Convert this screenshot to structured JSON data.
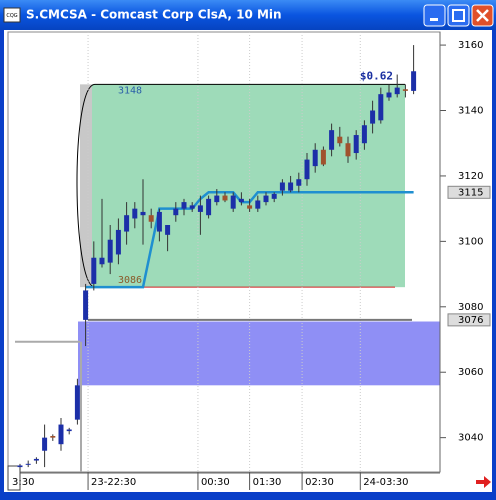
{
  "window": {
    "title": "S.CMCSA - Comcast Corp ClsA, 10 Min",
    "icon": "CQG"
  },
  "chart_data": {
    "type": "candlestick",
    "open": [
      3031,
      3032,
      3033,
      3036,
      3040.5,
      3038,
      3042,
      3045.5,
      3076,
      3087,
      3093,
      3093.5,
      3096,
      3103,
      3107,
      3108,
      3108,
      3103,
      3102,
      3108,
      3110,
      3110,
      3109,
      3108,
      3112,
      3114,
      3110,
      3112,
      3111,
      3110,
      3112,
      3113,
      3115.5,
      3115.5,
      3117,
      3119,
      3123,
      3128,
      3128,
      3132,
      3130,
      3127,
      3130,
      3136,
      3137,
      3144,
      3145,
      3146.5,
      3146
    ],
    "high": [
      3032,
      3033,
      3034,
      3044,
      3041,
      3046,
      3043,
      3058,
      3087,
      3100,
      3113,
      3105,
      3107,
      3112,
      3112,
      3119,
      3110,
      3110,
      3105,
      3112,
      3113,
      3112,
      3114,
      3114,
      3116,
      3115,
      3115,
      3115,
      3113,
      3114,
      3115,
      3115,
      3119,
      3120,
      3121,
      3127,
      3130,
      3129,
      3136,
      3135,
      3132,
      3134,
      3137,
      3143,
      3147,
      3148,
      3151,
      3148,
      3160
    ],
    "low": [
      3030,
      3031,
      3032,
      3031,
      3039,
      3036,
      3041,
      3044,
      3068,
      3085,
      3092,
      3090,
      3093,
      3099,
      3104,
      3099,
      3104,
      3100,
      3097,
      3106,
      3108,
      3109,
      3102,
      3107,
      3111,
      3112,
      3109,
      3111,
      3109,
      3109,
      3111,
      3112,
      3114,
      3115,
      3115,
      3117,
      3121,
      3123,
      3126,
      3129,
      3124,
      3125,
      3128,
      3133,
      3136,
      3143,
      3144,
      3144,
      3145
    ],
    "close": [
      3031.5,
      3032,
      3033.5,
      3040,
      3040,
      3044,
      3042.5,
      3056,
      3085,
      3095,
      3095,
      3100.5,
      3103.5,
      3108,
      3110,
      3109,
      3106,
      3109,
      3105,
      3110,
      3112,
      3111,
      3111,
      3113,
      3114,
      3112.5,
      3114,
      3113,
      3110,
      3112.5,
      3114,
      3114.5,
      3118,
      3118,
      3119,
      3125,
      3128,
      3123.5,
      3134,
      3130,
      3126,
      3132.5,
      3135.5,
      3140,
      3145,
      3145.5,
      3147,
      3146,
      3152
    ],
    "up_color": "#1c2fa8",
    "down_color": "#a0522d",
    "series": [
      {
        "color": "#1f8fd0",
        "values": [
          null,
          null,
          null,
          null,
          null,
          null,
          null,
          null,
          3086,
          3086,
          3086,
          3086,
          3086,
          3086,
          3086,
          3086,
          3098,
          3110,
          3110,
          3110,
          3110,
          3110,
          3113,
          3115,
          3115,
          3115,
          3115,
          3112,
          3112,
          3115,
          3115,
          3115,
          3115,
          3115,
          3115,
          3115,
          3115,
          3115,
          3115,
          3115,
          3115,
          3115,
          3115,
          3115,
          3115,
          3115,
          3115,
          3115,
          3115
        ]
      }
    ],
    "ylim": [
      3029.5,
      3164
    ],
    "yticks": [
      3040,
      3060,
      3080,
      3100,
      3120,
      3140,
      3160
    ],
    "xticks": [
      {
        "value": 0.6,
        "label": "3:30"
      },
      {
        "value": 8.3,
        "label": "23-22:30"
      },
      {
        "value": 21.7,
        "label": "00:30"
      },
      {
        "value": 28,
        "label": "01:30"
      },
      {
        "value": 34.4,
        "label": "02:30"
      },
      {
        "value": 41.5,
        "label": "24-03:30"
      }
    ],
    "range_box": {
      "top": 3148,
      "bottom": 3086,
      "change_label": "$0.62",
      "color": "#9edbb9"
    },
    "zone": {
      "top": 3075.5,
      "bottom": 3056,
      "color": "#8f8ff5"
    },
    "markers": [
      3115,
      3076
    ]
  }
}
